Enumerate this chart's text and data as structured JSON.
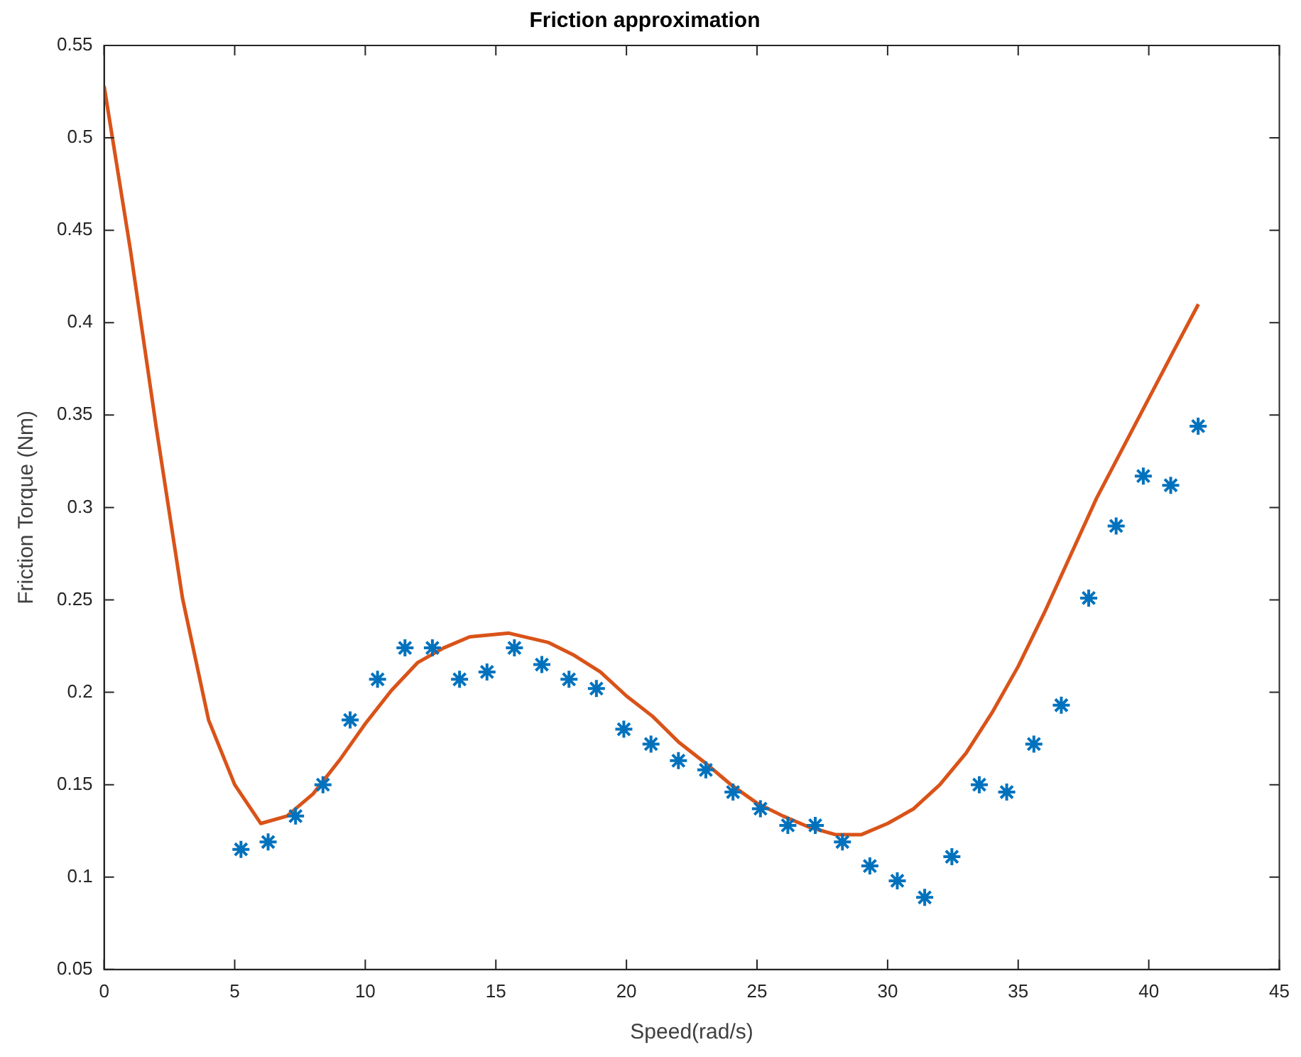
{
  "chart_data": {
    "type": "scatter",
    "title": "Friction approximation",
    "xlabel": "Speed(rad/s)",
    "ylabel": "Friction Torque (Nm)",
    "xlim": [
      0,
      45
    ],
    "xticks": [
      0,
      5,
      10,
      15,
      20,
      25,
      30,
      35,
      40,
      45
    ],
    "ylim": [
      0.05,
      0.55
    ],
    "yticks": [
      0.05,
      0.1,
      0.15,
      0.2,
      0.25,
      0.3,
      0.35,
      0.4,
      0.45,
      0.5,
      0.55
    ],
    "grid": false,
    "legend": false,
    "series": [
      {
        "type": "scatter",
        "marker": "cross",
        "color": "#0072bd",
        "x": [
          5.24,
          6.28,
          7.33,
          8.38,
          9.42,
          10.47,
          11.52,
          12.57,
          13.61,
          14.66,
          15.71,
          16.76,
          17.8,
          18.85,
          19.9,
          20.94,
          21.99,
          23.04,
          24.08,
          25.13,
          26.18,
          27.23,
          28.27,
          29.32,
          30.37,
          31.42,
          32.46,
          33.51,
          34.56,
          35.6,
          36.65,
          37.7,
          38.75,
          39.79,
          40.84,
          41.89
        ],
        "values": [
          0.115,
          0.119,
          0.133,
          0.15,
          0.185,
          0.207,
          0.224,
          0.224,
          0.207,
          0.211,
          0.224,
          0.215,
          0.207,
          0.202,
          0.18,
          0.172,
          0.163,
          0.158,
          0.146,
          0.137,
          0.128,
          0.128,
          0.119,
          0.106,
          0.098,
          0.089,
          0.111,
          0.15,
          0.146,
          0.172,
          0.193,
          0.251,
          0.29,
          0.317,
          0.312,
          0.344
        ]
      },
      {
        "type": "line",
        "marker": "none",
        "line_style": "solid",
        "color": "#d95319",
        "x": [
          0,
          1,
          2,
          3,
          4,
          5,
          6,
          7,
          8,
          9,
          10,
          11,
          12,
          13,
          14,
          15.5,
          17,
          18,
          19,
          20,
          21,
          22,
          23,
          24,
          25,
          26,
          27,
          28,
          29,
          30,
          31,
          32,
          33,
          34,
          35,
          36,
          37,
          38,
          39,
          40,
          41,
          41.9
        ],
        "values": [
          0.528,
          0.44,
          0.343,
          0.251,
          0.185,
          0.15,
          0.129,
          0.133,
          0.145,
          0.163,
          0.183,
          0.201,
          0.216,
          0.224,
          0.23,
          0.232,
          0.227,
          0.22,
          0.211,
          0.198,
          0.187,
          0.173,
          0.162,
          0.15,
          0.14,
          0.133,
          0.127,
          0.123,
          0.123,
          0.129,
          0.137,
          0.15,
          0.167,
          0.189,
          0.214,
          0.243,
          0.274,
          0.305,
          0.332,
          0.359,
          0.386,
          0.41
        ]
      }
    ]
  }
}
